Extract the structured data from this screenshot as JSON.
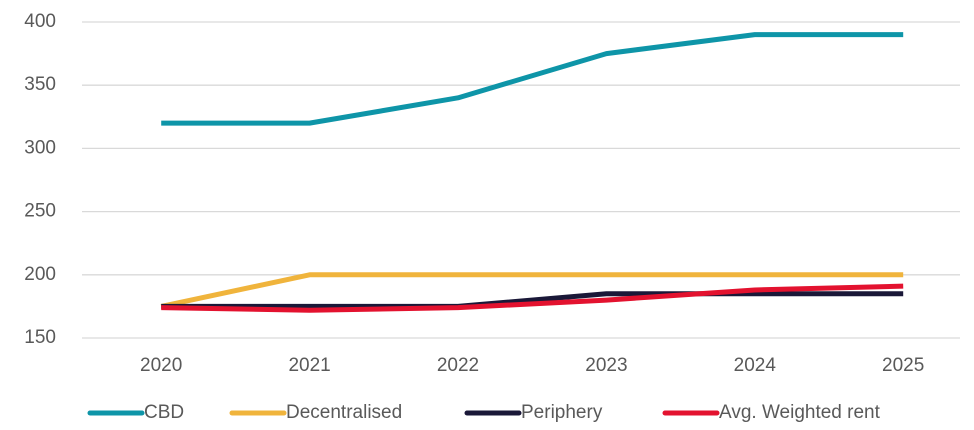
{
  "chart_data": {
    "type": "line",
    "categories": [
      "2020",
      "2021",
      "2022",
      "2023",
      "2024",
      "2025"
    ],
    "series": [
      {
        "name": "CBD",
        "color": "#0e95a8",
        "values": [
          320,
          320,
          340,
          375,
          390,
          390
        ]
      },
      {
        "name": "Decentralised",
        "color": "#f0b43c",
        "values": [
          175,
          200,
          200,
          200,
          200,
          200
        ]
      },
      {
        "name": "Periphery",
        "color": "#1a1838",
        "values": [
          175,
          175,
          175,
          185,
          185,
          185
        ]
      },
      {
        "name": "Avg. Weighted rent",
        "color": "#e3122f",
        "values": [
          174,
          172,
          174,
          180,
          188,
          191
        ]
      }
    ],
    "ylim": [
      150,
      400
    ],
    "yticks": [
      150,
      200,
      250,
      300,
      350,
      400
    ],
    "grid": true,
    "legend": "bottom"
  }
}
